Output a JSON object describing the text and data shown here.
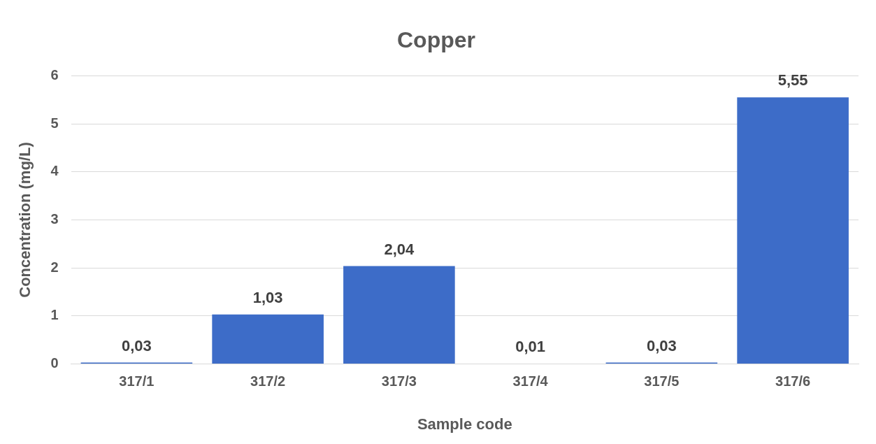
{
  "chart_data": {
    "type": "bar",
    "title": "Copper",
    "xlabel": "Sample code",
    "ylabel": "Concentration (mg/L)",
    "categories": [
      "317/1",
      "317/2",
      "317/3",
      "317/4",
      "317/5",
      "317/6"
    ],
    "values": [
      0.03,
      1.03,
      2.04,
      0.01,
      0.03,
      5.55
    ],
    "value_labels": [
      "0,03",
      "1,03",
      "2,04",
      "0,01",
      "0,03",
      "5,55"
    ],
    "color": "#3d6cc8",
    "ylim": [
      0,
      6
    ],
    "yticks": [
      0,
      1,
      2,
      3,
      4,
      5,
      6
    ],
    "grid": "y",
    "legend": false
  }
}
